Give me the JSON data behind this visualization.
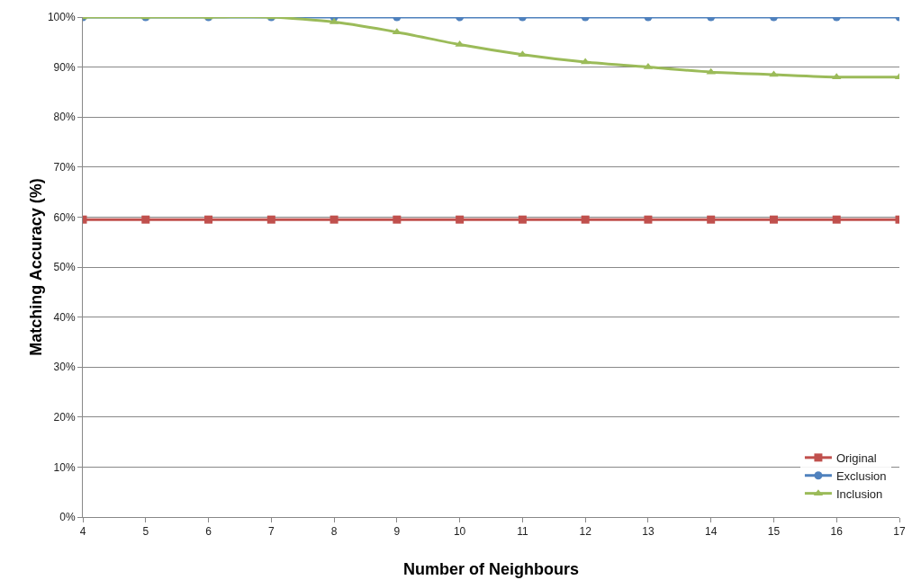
{
  "chart_data": {
    "type": "line",
    "xlabel": "Number of Neighbours",
    "ylabel": "Matching Accuracy (%)",
    "x": [
      4,
      5,
      6,
      7,
      8,
      9,
      10,
      11,
      12,
      13,
      14,
      15,
      16,
      17
    ],
    "xlim": [
      4,
      17
    ],
    "xticks": [
      4,
      5,
      6,
      7,
      8,
      9,
      10,
      11,
      12,
      13,
      14,
      15,
      16,
      17
    ],
    "ylim": [
      0,
      100
    ],
    "yticks": [
      {
        "value": 0,
        "label": "0%"
      },
      {
        "value": 10,
        "label": "10%"
      },
      {
        "value": 20,
        "label": "20%"
      },
      {
        "value": 30,
        "label": "30%"
      },
      {
        "value": 40,
        "label": "40%"
      },
      {
        "value": 50,
        "label": "50%"
      },
      {
        "value": 60,
        "label": "60%"
      },
      {
        "value": 70,
        "label": "70%"
      },
      {
        "value": 80,
        "label": "80%"
      },
      {
        "value": 90,
        "label": "90%"
      },
      {
        "value": 100,
        "label": "100%"
      }
    ],
    "grid": "y",
    "legend": "bottom right",
    "line_style": "solid",
    "series": [
      {
        "name": "Original",
        "color": "#c0504d",
        "marker": "square",
        "values": [
          59.5,
          59.5,
          59.5,
          59.5,
          59.5,
          59.5,
          59.5,
          59.5,
          59.5,
          59.5,
          59.5,
          59.5,
          59.5,
          59.5
        ]
      },
      {
        "name": "Exclusion",
        "color": "#4f81bd",
        "marker": "circle",
        "values": [
          100,
          100,
          100,
          100,
          100,
          100,
          100,
          100,
          100,
          100,
          100,
          100,
          100,
          100
        ]
      },
      {
        "name": "Inclusion",
        "color": "#9bbb59",
        "marker": "triangle",
        "values": [
          100,
          100,
          100,
          100,
          99,
          97,
          94.5,
          92.5,
          91,
          90,
          89,
          88.5,
          88,
          88
        ]
      }
    ]
  }
}
